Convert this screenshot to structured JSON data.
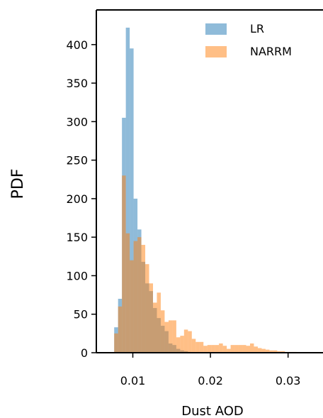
{
  "chart_data": {
    "type": "bar",
    "xlabel": "Dust AOD",
    "ylabel": "PDF",
    "xlim": [
      0.0053,
      0.0345
    ],
    "ylim": [
      0,
      445
    ],
    "xticks": [
      0.01,
      0.02,
      0.03
    ],
    "xtick_labels": [
      "0.01",
      "0.02",
      "0.03"
    ],
    "yticks": [
      0,
      50,
      100,
      150,
      200,
      250,
      300,
      350,
      400
    ],
    "ytick_labels": [
      "0",
      "50",
      "100",
      "150",
      "200",
      "250",
      "300",
      "350",
      "400"
    ],
    "grid": false,
    "legend_position": "top-right",
    "bin_edges": [
      0.0076,
      0.0081,
      0.0086,
      0.0091,
      0.0096,
      0.0101,
      0.0106,
      0.0111,
      0.0116,
      0.0121,
      0.0126,
      0.0131,
      0.0136,
      0.0141,
      0.0146,
      0.0151,
      0.0156,
      0.0161,
      0.0166,
      0.0171,
      0.0176,
      0.0181,
      0.0186,
      0.0191,
      0.0196,
      0.0201,
      0.0206,
      0.0211,
      0.0216,
      0.0221,
      0.0226,
      0.0231,
      0.0236,
      0.0241,
      0.0246,
      0.0251,
      0.0256,
      0.0261,
      0.0266,
      0.0271,
      0.0276,
      0.0281,
      0.0286,
      0.0291,
      0.0296,
      0.0301,
      0.0306,
      0.0311
    ],
    "series": [
      {
        "name": "LR",
        "color": "#1f77b4",
        "alpha": 0.5,
        "values": [
          33,
          70,
          305,
          422,
          395,
          200,
          160,
          118,
          90,
          80,
          58,
          45,
          35,
          28,
          12,
          10,
          5,
          3,
          2,
          1,
          0,
          0,
          0,
          0,
          0,
          0,
          0,
          0,
          0,
          0,
          0,
          0,
          0,
          0,
          0,
          0,
          0,
          0,
          0,
          0,
          0,
          0,
          0,
          0,
          0,
          0,
          0
        ]
      },
      {
        "name": "NARRM",
        "color": "#ff7f0e",
        "alpha": 0.5,
        "values": [
          25,
          60,
          230,
          155,
          120,
          145,
          150,
          140,
          115,
          90,
          65,
          78,
          55,
          40,
          42,
          42,
          20,
          22,
          30,
          28,
          18,
          14,
          14,
          9,
          10,
          10,
          10,
          12,
          9,
          5,
          10,
          10,
          10,
          10,
          9,
          12,
          8,
          6,
          5,
          4,
          3,
          3,
          2,
          2,
          1,
          1,
          1
        ]
      }
    ]
  }
}
